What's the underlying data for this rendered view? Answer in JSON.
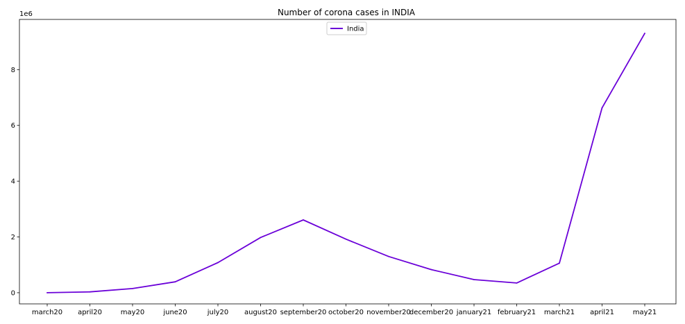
{
  "chart_data": {
    "type": "line",
    "title": "Number of corona cases in INDIA",
    "xlabel": "",
    "ylabel": "",
    "y_offset_label": "1e6",
    "categories": [
      "march20",
      "april20",
      "may20",
      "june20",
      "july20",
      "august20",
      "september20",
      "october20",
      "november20",
      "december20",
      "january21",
      "february21",
      "march21",
      "april21",
      "may21"
    ],
    "series": [
      {
        "name": "India",
        "color": "#6a00d8",
        "values": [
          0.0,
          0.03,
          0.15,
          0.39,
          1.08,
          1.98,
          2.61,
          1.92,
          1.3,
          0.83,
          0.47,
          0.35,
          1.06,
          6.63,
          9.3
        ]
      }
    ],
    "y_ticks": [
      0,
      2,
      4,
      6,
      8
    ],
    "ylim": [
      -0.4,
      9.8
    ],
    "grid": false,
    "legend": "top-center"
  }
}
